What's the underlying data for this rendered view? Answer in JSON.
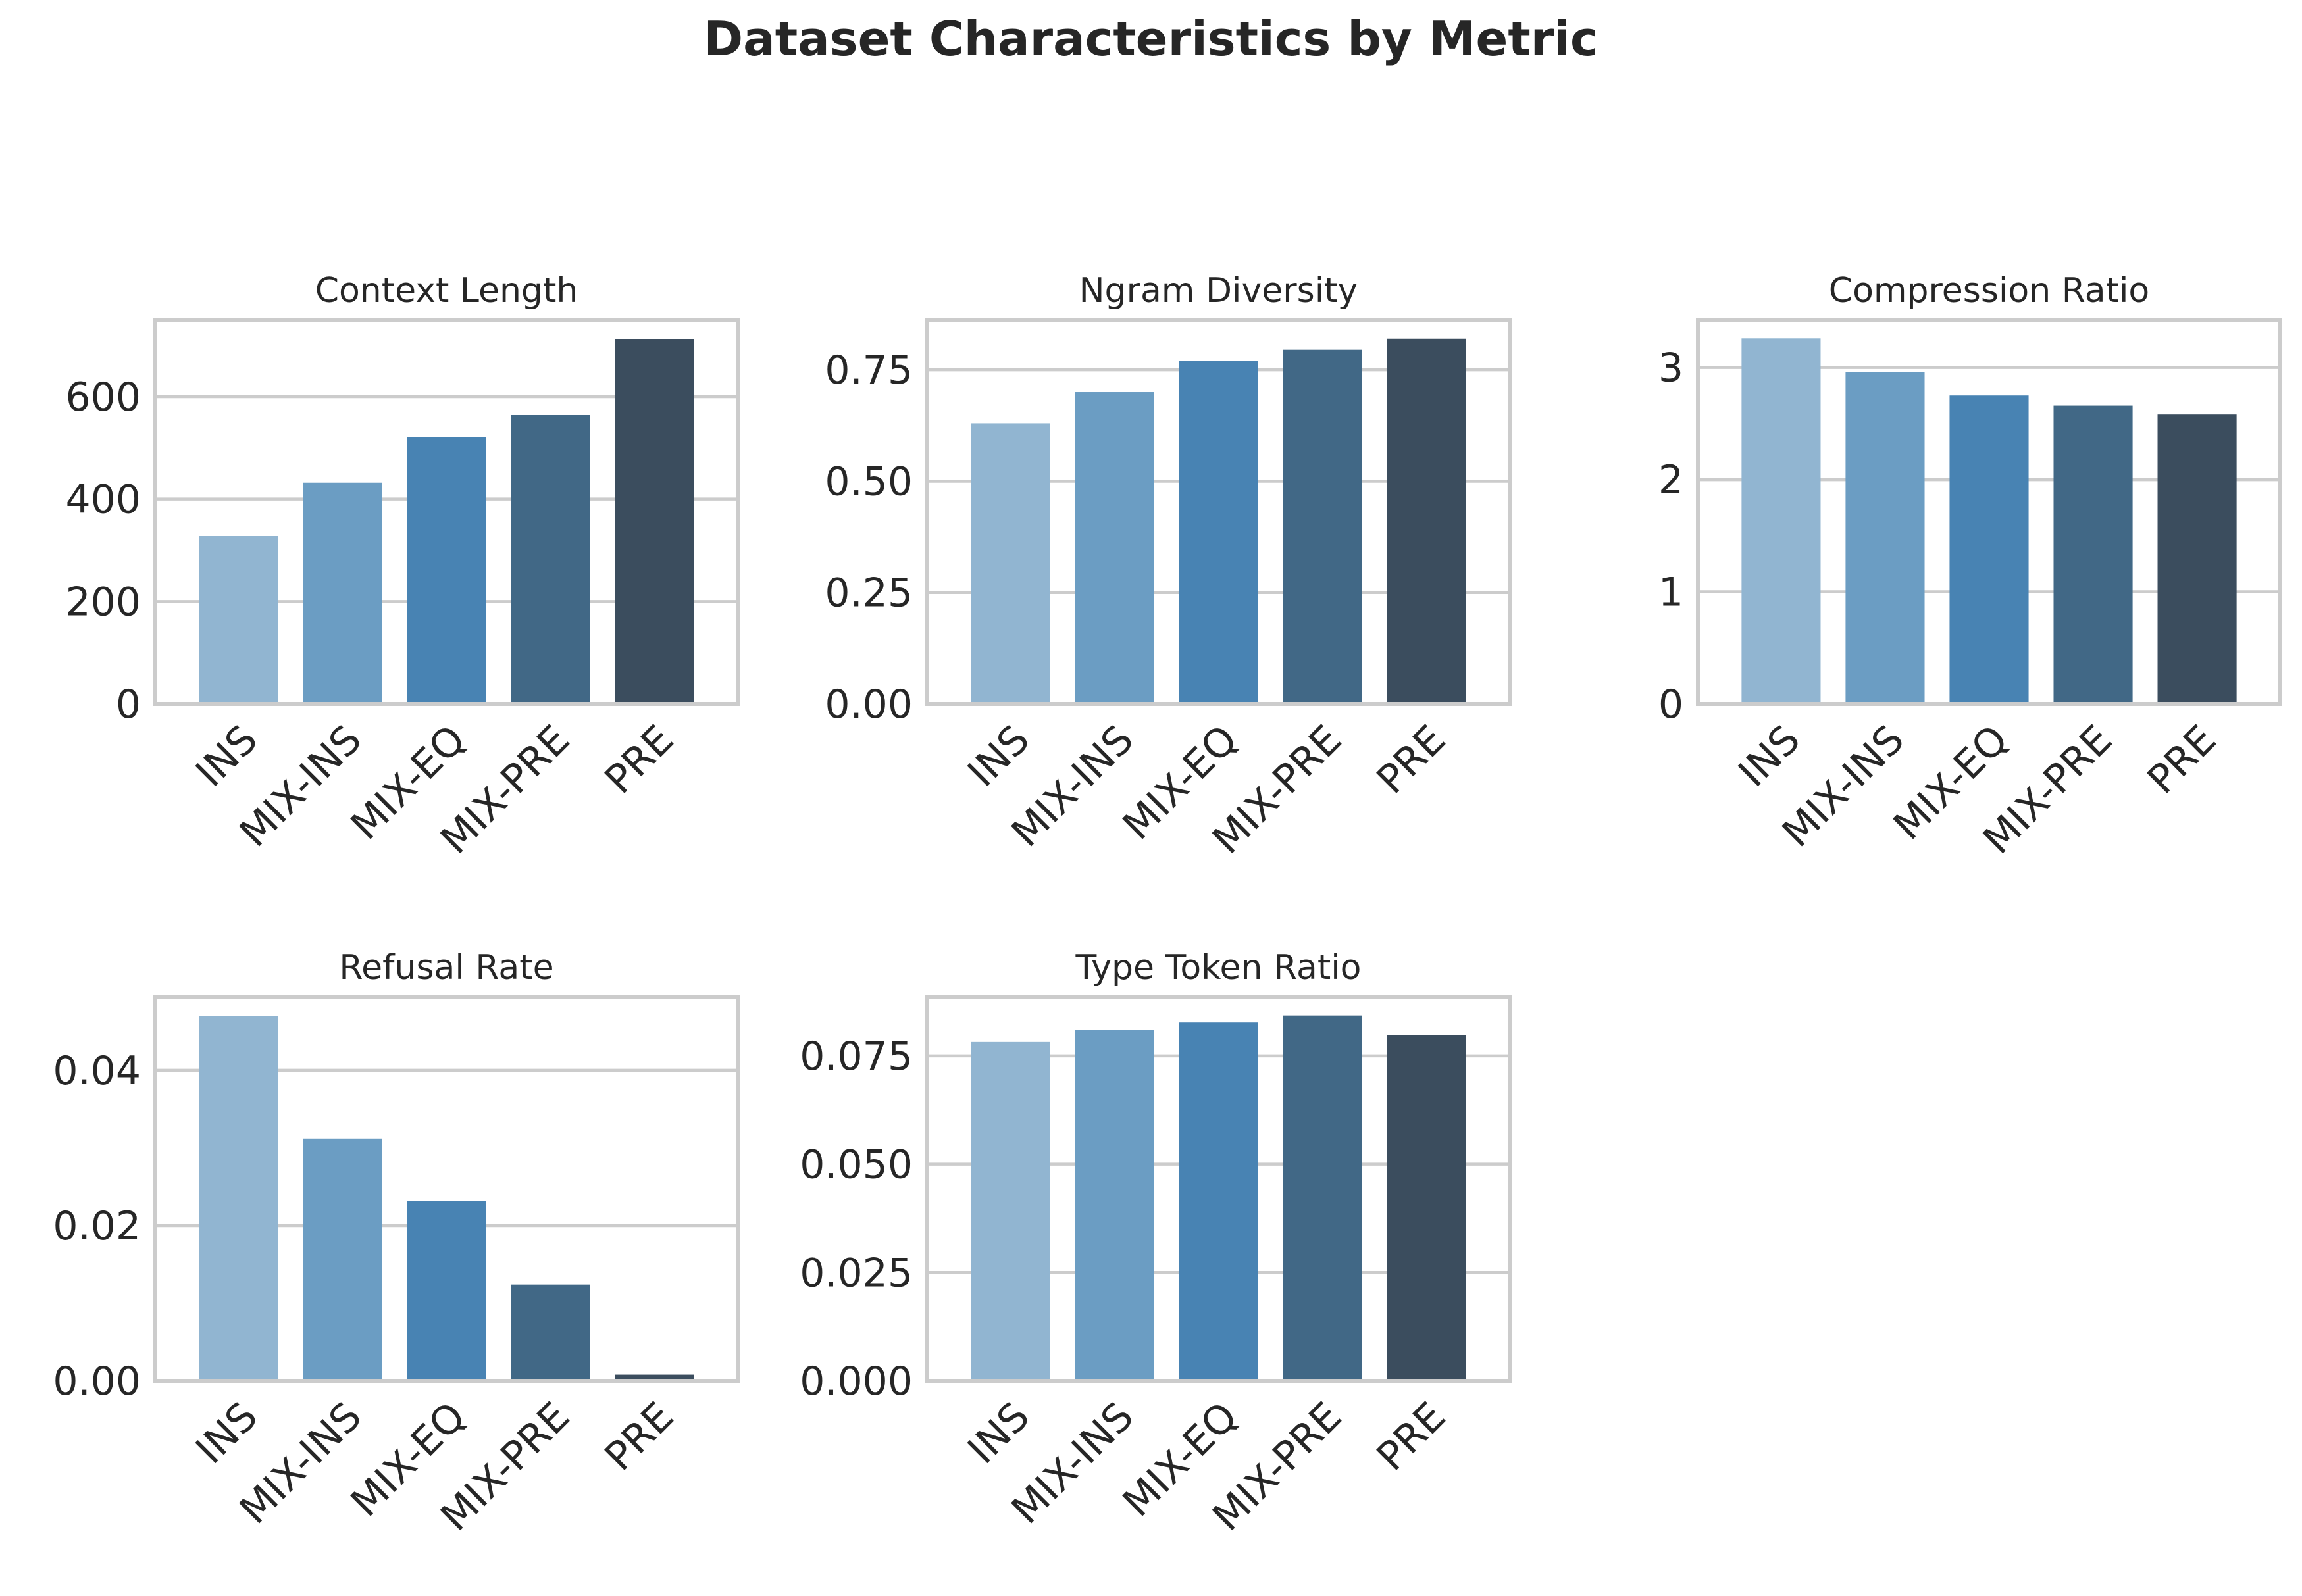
{
  "figure": {
    "title": "Dataset Characteristics by Metric"
  },
  "categories": [
    "INS",
    "MIX-INS",
    "MIX-EQ",
    "MIX-PRE",
    "PRE"
  ],
  "colors": [
    "#91b5d1",
    "#6b9dc3",
    "#4883b3",
    "#416886",
    "#3b4d5e"
  ],
  "chart_data": [
    {
      "type": "bar",
      "title": "Context Length",
      "categories": [
        "INS",
        "MIX-INS",
        "MIX-EQ",
        "MIX-PRE",
        "PRE"
      ],
      "values": [
        328,
        432,
        521,
        564,
        713
      ],
      "ylim": [
        0,
        749
      ],
      "yticks": [
        0,
        200,
        400,
        600
      ],
      "ytick_labels": [
        "0",
        "200",
        "400",
        "600"
      ],
      "grid": true,
      "xlabel": "",
      "ylabel": ""
    },
    {
      "type": "bar",
      "title": "Ngram Diversity",
      "categories": [
        "INS",
        "MIX-INS",
        "MIX-EQ",
        "MIX-PRE",
        "PRE"
      ],
      "values": [
        0.63,
        0.7,
        0.77,
        0.795,
        0.82
      ],
      "ylim": [
        0,
        0.861
      ],
      "yticks": [
        0,
        0.25,
        0.5,
        0.75
      ],
      "ytick_labels": [
        "0.00",
        "0.25",
        "0.50",
        "0.75"
      ],
      "grid": true,
      "xlabel": "",
      "ylabel": ""
    },
    {
      "type": "bar",
      "title": "Compression Ratio",
      "categories": [
        "INS",
        "MIX-INS",
        "MIX-EQ",
        "MIX-PRE",
        "PRE"
      ],
      "values": [
        3.26,
        2.96,
        2.75,
        2.66,
        2.58
      ],
      "ylim": [
        0,
        3.42
      ],
      "yticks": [
        0,
        1,
        2,
        3
      ],
      "ytick_labels": [
        "0",
        "1",
        "2",
        "3"
      ],
      "grid": true,
      "xlabel": "",
      "ylabel": ""
    },
    {
      "type": "bar",
      "title": "Refusal Rate",
      "categories": [
        "INS",
        "MIX-INS",
        "MIX-EQ",
        "MIX-PRE",
        "PRE"
      ],
      "values": [
        0.047,
        0.0312,
        0.0232,
        0.0124,
        0.0008
      ],
      "ylim": [
        0,
        0.0494
      ],
      "yticks": [
        0,
        0.02,
        0.04
      ],
      "ytick_labels": [
        "0.00",
        "0.02",
        "0.04"
      ],
      "grid": true,
      "xlabel": "",
      "ylabel": ""
    },
    {
      "type": "bar",
      "title": "Type Token Ratio",
      "categories": [
        "INS",
        "MIX-INS",
        "MIX-EQ",
        "MIX-PRE",
        "PRE"
      ],
      "values": [
        0.0782,
        0.081,
        0.0827,
        0.0843,
        0.0797
      ],
      "ylim": [
        0,
        0.0885
      ],
      "yticks": [
        0,
        0.025,
        0.05,
        0.075
      ],
      "ytick_labels": [
        "0.000",
        "0.025",
        "0.050",
        "0.075"
      ],
      "grid": true,
      "xlabel": "",
      "ylabel": ""
    }
  ]
}
